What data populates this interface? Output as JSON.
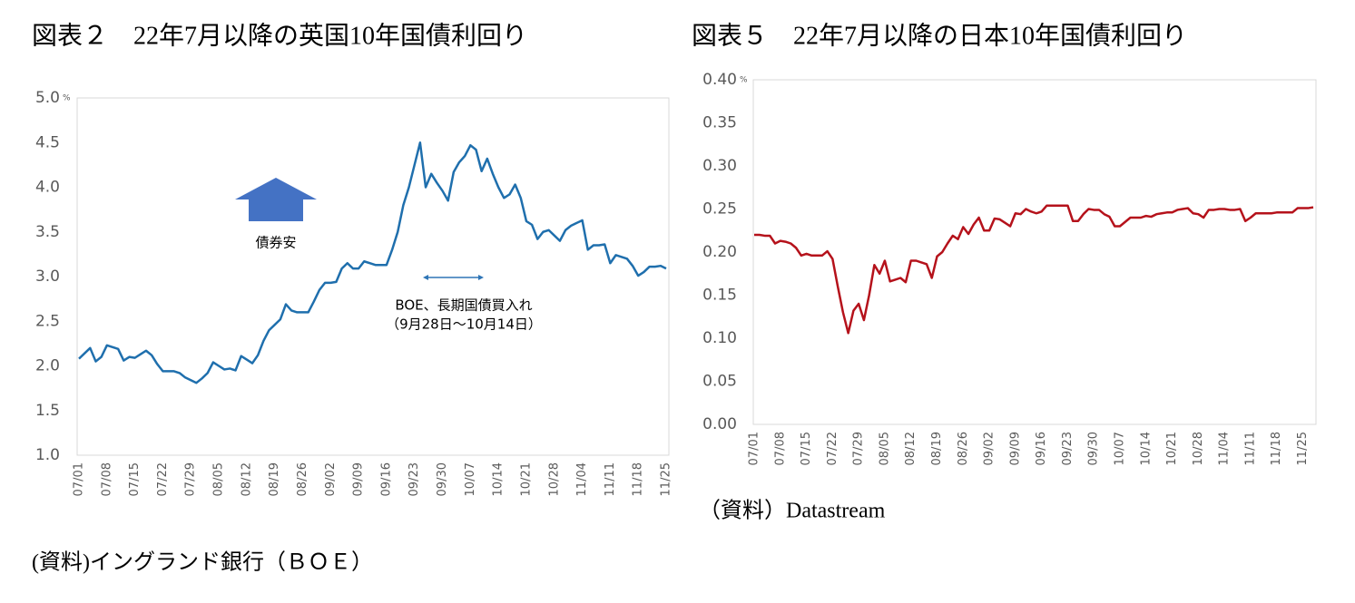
{
  "chart_data": [
    {
      "type": "line",
      "title": "図表２　22年7月以降の英国10年国債利回り",
      "source": "(資料)イングランド銀行（ＢＯＥ）",
      "y_unit": "%",
      "annotations": [
        "債券安",
        "BOE、長期国債買入れ",
        "（9月28日～10月14日）"
      ],
      "color": "#1f6fad",
      "grid": false,
      "ylim": [
        1,
        5
      ],
      "yticks": [
        {
          "value": 1,
          "label": "1.0"
        },
        1.5,
        {
          "value": 2,
          "label": "2.0"
        },
        2.5,
        {
          "value": 3,
          "label": "3.0"
        },
        3.5,
        {
          "value": 4,
          "label": "4.0"
        },
        4.5,
        {
          "value": 5,
          "label": "5.0"
        }
      ],
      "categories": [
        "07/01",
        null,
        null,
        null,
        null,
        "07/08",
        null,
        null,
        null,
        null,
        "07/15",
        null,
        null,
        null,
        null,
        "07/22",
        null,
        null,
        null,
        null,
        "07/29",
        null,
        null,
        null,
        null,
        "08/05",
        null,
        null,
        null,
        null,
        "08/12",
        null,
        null,
        null,
        null,
        "08/19",
        null,
        null,
        null,
        null,
        "08/26",
        null,
        null,
        null,
        null,
        "09/02",
        null,
        null,
        null,
        null,
        "09/09",
        null,
        null,
        null,
        null,
        "09/16",
        null,
        null,
        null,
        null,
        "09/23",
        null,
        null,
        null,
        null,
        "09/30",
        null,
        null,
        null,
        null,
        "10/07",
        null,
        null,
        null,
        null,
        "10/14",
        null,
        null,
        null,
        null,
        "10/21",
        null,
        null,
        null,
        null,
        "10/28",
        null,
        null,
        null,
        null,
        "11/04",
        null,
        null,
        null,
        null,
        "11/11",
        null,
        null,
        null,
        null,
        "11/18",
        null,
        null,
        null,
        null,
        "11/25"
      ],
      "values": [
        2.08,
        2.14,
        2.2,
        2.05,
        2.1,
        2.23,
        2.21,
        2.19,
        2.06,
        2.1,
        2.09,
        2.13,
        2.17,
        2.12,
        2.02,
        1.94,
        1.94,
        1.94,
        1.92,
        1.87,
        1.84,
        1.81,
        1.86,
        1.92,
        2.04,
        2.0,
        1.96,
        1.97,
        1.95,
        2.11,
        2.07,
        2.03,
        2.12,
        2.28,
        2.4,
        2.46,
        2.52,
        2.69,
        2.62,
        2.6,
        2.6,
        2.6,
        2.72,
        2.85,
        2.93,
        2.93,
        2.94,
        3.09,
        3.15,
        3.09,
        3.09,
        3.17,
        3.15,
        3.13,
        3.13,
        3.13,
        3.3,
        3.5,
        3.8,
        4.0,
        4.25,
        4.5,
        4.0,
        4.15,
        4.05,
        3.96,
        3.85,
        4.17,
        4.28,
        4.35,
        4.47,
        4.42,
        4.18,
        4.32,
        4.15,
        4.0,
        3.88,
        3.92,
        4.03,
        3.88,
        3.62,
        3.58,
        3.42,
        3.5,
        3.52,
        3.46,
        3.4,
        3.52,
        3.57,
        3.6,
        3.63,
        3.3,
        3.35,
        3.35,
        3.36,
        3.15,
        3.24,
        3.22,
        3.2,
        3.12,
        3.01,
        3.05,
        3.11,
        3.11,
        3.12,
        3.09
      ]
    },
    {
      "type": "line",
      "title": "図表５　22年7月以降の日本10年国債利回り",
      "source": "（資料）Datastream",
      "y_unit": "%",
      "color": "#b5121b",
      "grid": false,
      "ylim": [
        0,
        0.4
      ],
      "yticks": [
        {
          "value": 0,
          "label": "0.00"
        },
        0.05,
        {
          "value": 0.1,
          "label": "0.10"
        },
        0.15,
        {
          "value": 0.2,
          "label": "0.20"
        },
        0.25,
        {
          "value": 0.3,
          "label": "0.30"
        },
        0.35,
        {
          "value": 0.4,
          "label": "0.40"
        }
      ],
      "categories": [
        "07/01",
        null,
        null,
        null,
        null,
        "07/08",
        null,
        null,
        null,
        null,
        "07/15",
        null,
        null,
        null,
        null,
        "07/22",
        null,
        null,
        null,
        null,
        "07/29",
        null,
        null,
        null,
        null,
        "08/05",
        null,
        null,
        null,
        null,
        "08/12",
        null,
        null,
        null,
        null,
        "08/19",
        null,
        null,
        null,
        null,
        "08/26",
        null,
        null,
        null,
        null,
        "09/02",
        null,
        null,
        null,
        null,
        "09/09",
        null,
        null,
        null,
        null,
        "09/16",
        null,
        null,
        null,
        null,
        "09/23",
        null,
        null,
        null,
        null,
        "09/30",
        null,
        null,
        null,
        null,
        "10/07",
        null,
        null,
        null,
        null,
        "10/14",
        null,
        null,
        null,
        null,
        "10/21",
        null,
        null,
        null,
        null,
        "10/28",
        null,
        null,
        null,
        null,
        "11/04",
        null,
        null,
        null,
        null,
        "11/11",
        null,
        null,
        null,
        null,
        "11/18",
        null,
        null,
        null,
        null,
        "11/25",
        null,
        null
      ],
      "values": [
        0.22,
        0.22,
        0.219,
        0.219,
        0.21,
        0.213,
        0.212,
        0.21,
        0.205,
        0.196,
        0.198,
        0.196,
        0.196,
        0.196,
        0.201,
        0.192,
        0.16,
        0.13,
        0.106,
        0.132,
        0.14,
        0.121,
        0.15,
        0.185,
        0.175,
        0.19,
        0.166,
        0.168,
        0.17,
        0.165,
        0.19,
        0.19,
        0.188,
        0.186,
        0.17,
        0.195,
        0.2,
        0.21,
        0.219,
        0.215,
        0.229,
        0.221,
        0.232,
        0.24,
        0.225,
        0.225,
        0.239,
        0.238,
        0.234,
        0.23,
        0.245,
        0.244,
        0.25,
        0.247,
        0.245,
        0.247,
        0.254,
        0.254,
        0.254,
        0.254,
        0.254,
        0.236,
        0.236,
        0.244,
        0.25,
        0.249,
        0.249,
        0.244,
        0.241,
        0.23,
        0.23,
        0.235,
        0.24,
        0.24,
        0.24,
        0.242,
        0.241,
        0.244,
        0.245,
        0.246,
        0.246,
        0.249,
        0.25,
        0.251,
        0.245,
        0.244,
        0.24,
        0.249,
        0.249,
        0.25,
        0.25,
        0.249,
        0.249,
        0.25,
        0.236,
        0.24,
        0.245,
        0.245,
        0.245,
        0.245,
        0.246,
        0.246,
        0.246,
        0.246,
        0.251,
        0.251,
        0.251,
        0.252
      ]
    }
  ]
}
